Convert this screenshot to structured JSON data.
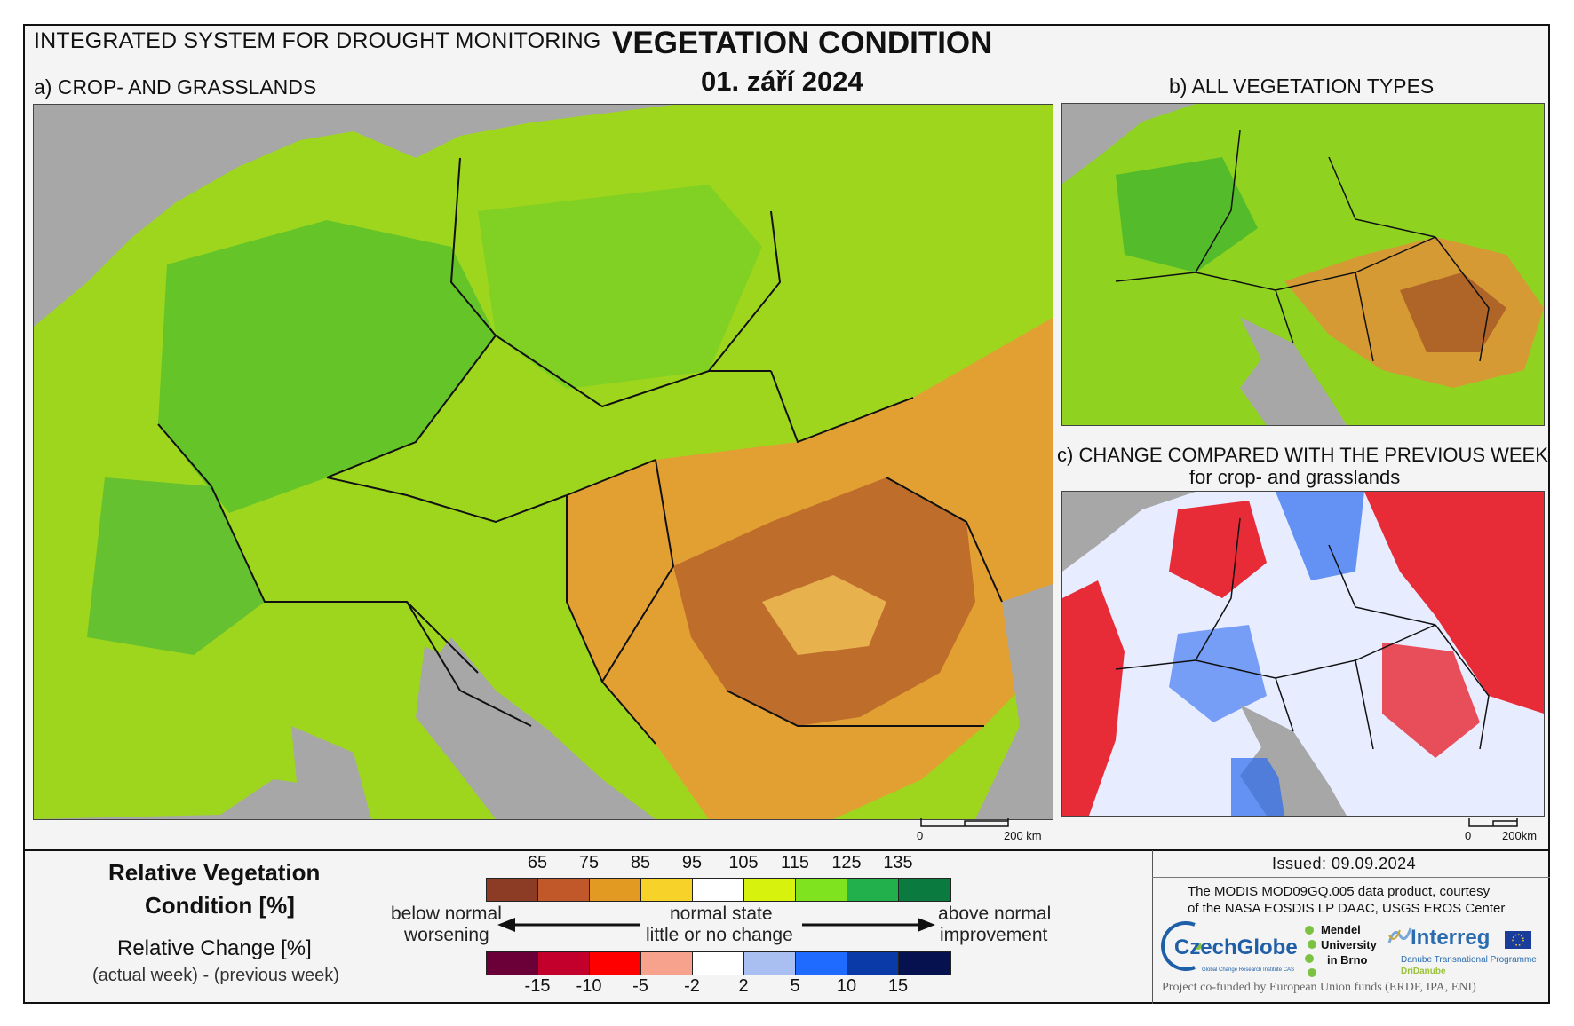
{
  "header": {
    "system_title": "INTEGRATED SYSTEM FOR DROUGHT MONITORING",
    "main_title": "VEGETATION CONDITION",
    "date": "01. září 2024"
  },
  "panels": {
    "a_title": "a) CROP- AND GRASSLANDS",
    "b_title": "b) ALL VEGETATION TYPES",
    "c_title": "c) CHANGE COMPARED WITH THE PREVIOUS WEEK",
    "c_subtitle": "for crop- and grasslands"
  },
  "scale_bars": {
    "a": {
      "start": "0",
      "end": "200 km"
    },
    "c": {
      "start": "0",
      "end": "200km"
    }
  },
  "legend": {
    "rvc_title_line1": "Relative Vegetation",
    "rvc_title_line2": "Condition [%]",
    "rc_title": "Relative Change [%]",
    "rc_subtitle": "(actual week) - (previous week)",
    "rvc_ticks": [
      "65",
      "75",
      "85",
      "95",
      "105",
      "115",
      "125",
      "135"
    ],
    "rvc_colors": [
      "#8c3b24",
      "#c0582a",
      "#e29a22",
      "#f7d32a",
      "#ffffff",
      "#d7f20d",
      "#7fe31f",
      "#22b04c",
      "#0a7a3f"
    ],
    "rc_ticks": [
      "-15",
      "-10",
      "-5",
      "-2",
      "2",
      "5",
      "10",
      "15"
    ],
    "rc_colors": [
      "#6b0038",
      "#c2002b",
      "#ff0000",
      "#f7a28c",
      "#ffffff",
      "#a9bff2",
      "#1f6bff",
      "#0a3aa8",
      "#05124f"
    ],
    "left_label_line1": "below normal",
    "left_label_line2": "worsening",
    "center_label_line1": "normal state",
    "center_label_line2": "little or no change",
    "right_label_line1": "above normal",
    "right_label_line2": "improvement"
  },
  "info": {
    "issued": "Issued: 09.09.2024",
    "credit_line1": "The MODIS MOD09GQ.005 data product, courtesy",
    "credit_line2": "of the NASA EOSDIS LP DAAC, USGS EROS Center",
    "footer": "Project co-funded by European Union funds (ERDF, IPA, ENI)",
    "logos": {
      "czechglobe": "CzechGlobe",
      "czechglobe_sub": "Global Change Research Institute CAS",
      "mendel_line1": "Mendel",
      "mendel_line2": "University",
      "mendel_line3": "in Brno",
      "interreg": "Interreg",
      "interreg_sub1": "Danube Transnational Programme",
      "interreg_sub2": "DriDanube"
    }
  },
  "colors": {
    "sea_gray": "#a7a7a7",
    "border_black": "#111111"
  }
}
